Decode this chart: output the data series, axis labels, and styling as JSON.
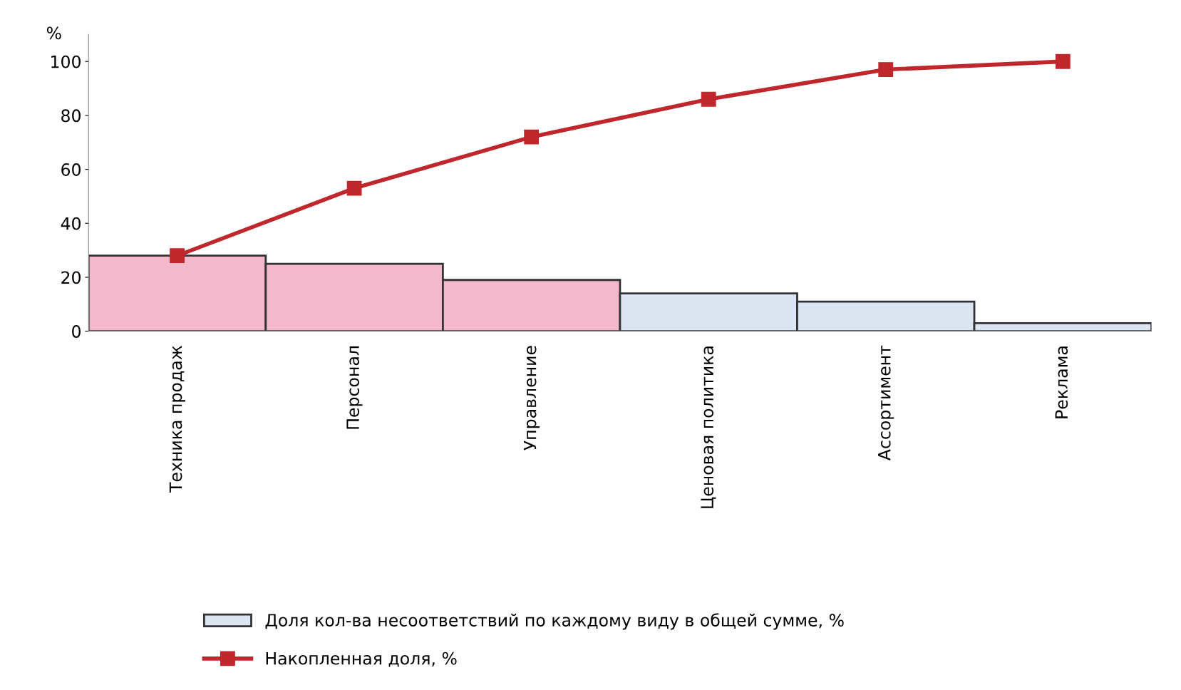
{
  "chart_data": {
    "type": "bar",
    "ylabel": "%",
    "categories": [
      "Техника продаж",
      "Персонал",
      "Управление",
      "Ценовая политика",
      "Ассортимент",
      "Реклама"
    ],
    "series": [
      {
        "name": "Доля кол-ва несоответствий по каждому виду в общей сумме, %",
        "color": "#dce6f2",
        "colors": [
          "#f4b8cc",
          "#f4b8cc",
          "#f4b8cc",
          "#dce6f2",
          "#dce6f2",
          "#dce6f2"
        ],
        "values": [
          28,
          25,
          19,
          14,
          11,
          3
        ]
      },
      {
        "name": "Накопленная доля, %",
        "type": "line",
        "color": "#c0272d",
        "marker": "square",
        "values": [
          28,
          53,
          72,
          86,
          97,
          100
        ]
      }
    ],
    "ylim": [
      0,
      110
    ],
    "yticks": [
      0,
      20,
      40,
      60,
      80,
      100
    ],
    "grid": false,
    "legend": "bottom"
  }
}
